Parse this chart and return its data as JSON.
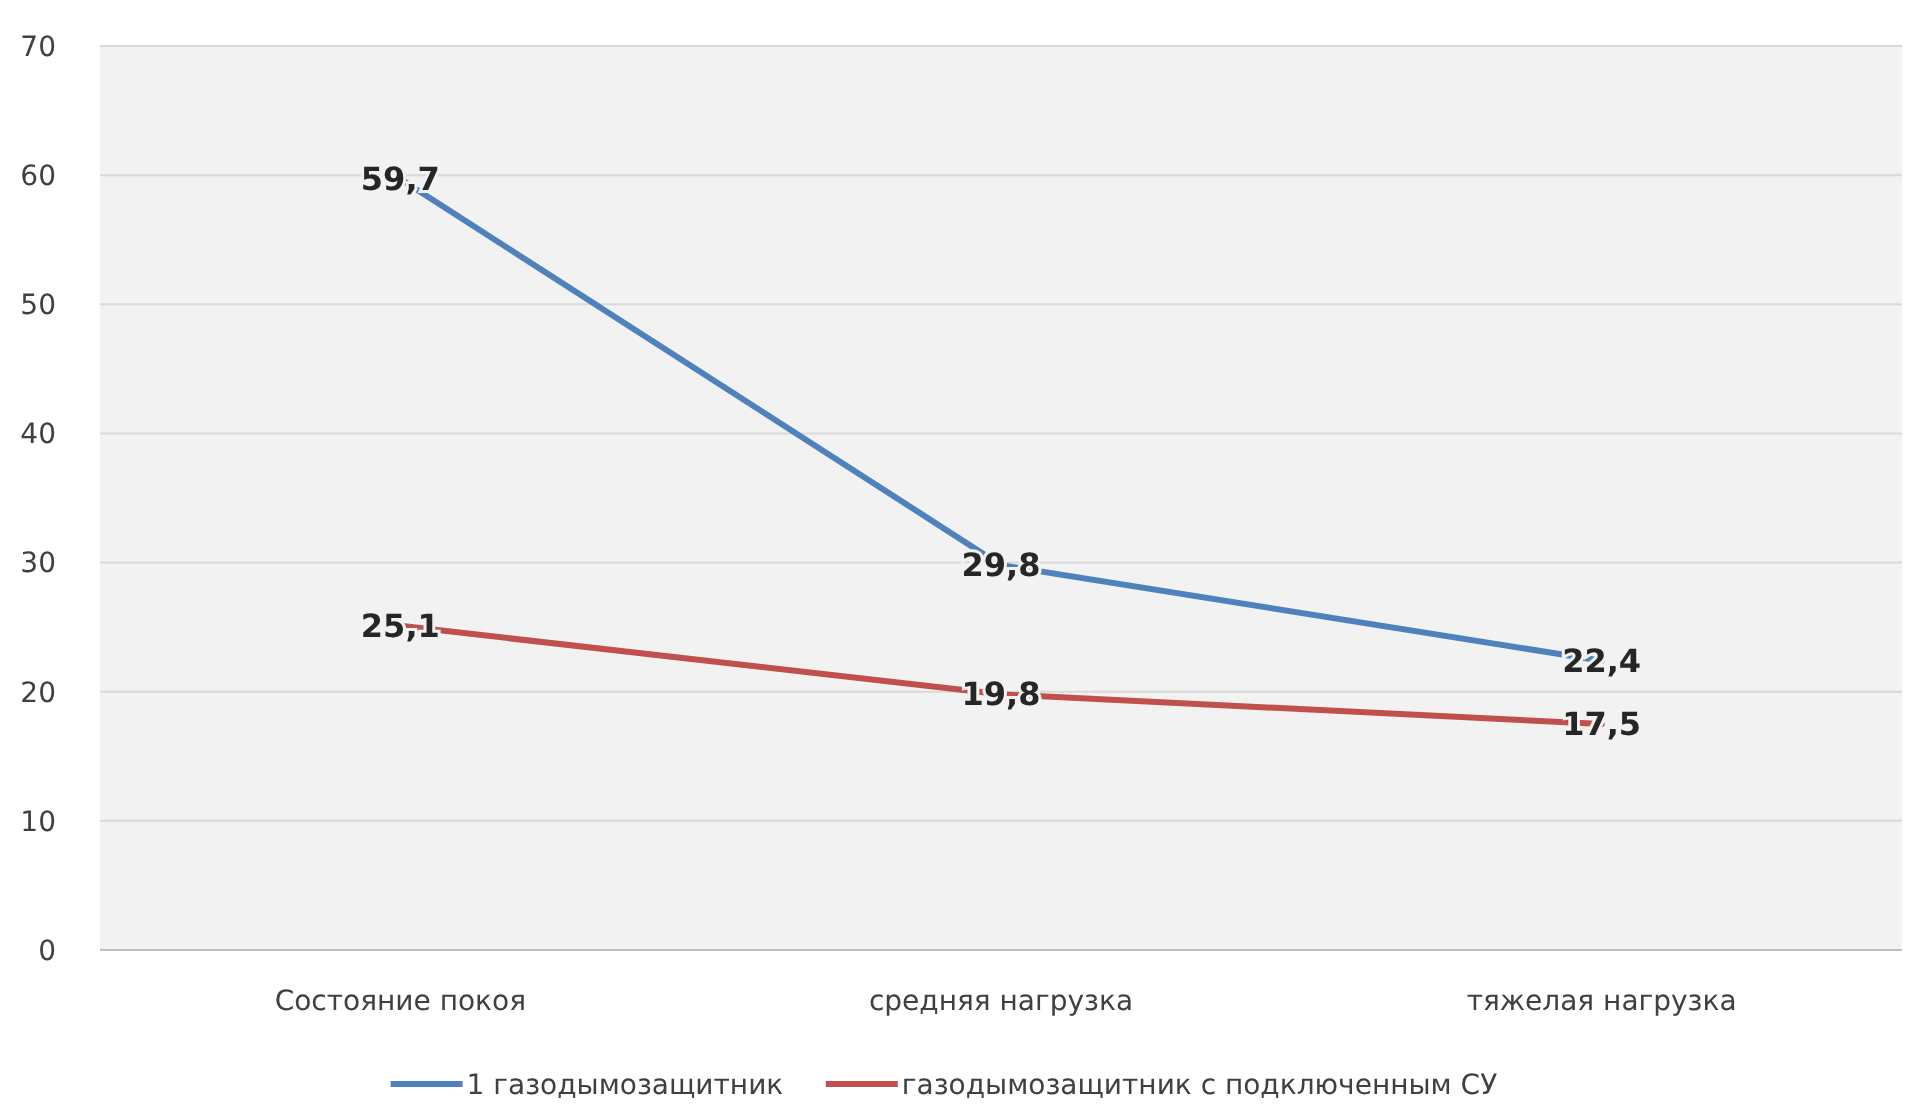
{
  "chart_data": {
    "type": "line",
    "categories": [
      "Состояние покоя",
      "средняя нагрузка",
      "тяжелая нагрузка"
    ],
    "series": [
      {
        "name": "1 газодымозащитник",
        "color": "#4f81bd",
        "values": [
          59.7,
          29.8,
          22.4
        ],
        "value_labels": [
          "59,7",
          "29,8",
          "22,4"
        ]
      },
      {
        "name": "газодымозащитник с подключенным СУ",
        "color": "#c0504d",
        "values": [
          25.1,
          19.8,
          17.5
        ],
        "value_labels": [
          "25,1",
          "19,8",
          "17,5"
        ]
      }
    ],
    "ylim": [
      0,
      70
    ],
    "yticks": [
      0,
      10,
      20,
      30,
      40,
      50,
      60,
      70
    ],
    "grid": "y",
    "legend": "bottom",
    "marker": "none",
    "line_style": "solid"
  }
}
